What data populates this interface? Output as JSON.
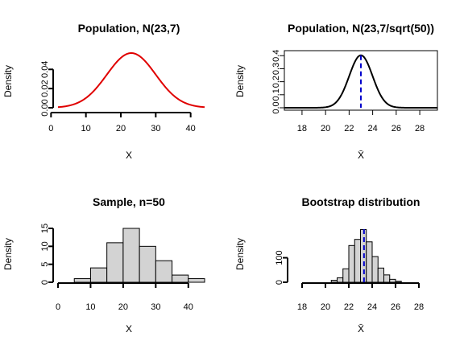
{
  "chart_data": [
    {
      "type": "line",
      "title": "Population, N(23,7)",
      "xlabel": "X",
      "ylabel": "Density",
      "xlim": [
        2,
        44
      ],
      "ylim": [
        0,
        0.057
      ],
      "xticks": [
        0,
        10,
        20,
        30,
        40
      ],
      "yticks": [
        0.0,
        0.02,
        0.04
      ],
      "ytick_labels": [
        "0.00",
        "0.02",
        "0.04"
      ],
      "line_color": "#e00000",
      "series": [
        {
          "mean": 23,
          "sd": 7,
          "x_from": 2,
          "x_to": 44
        }
      ]
    },
    {
      "type": "line",
      "title": "Population, N(23,7/sqrt(50))",
      "xlabel": "X̄",
      "ylabel": "Density",
      "xlim": [
        16.5,
        29.5
      ],
      "ylim": [
        0,
        0.42
      ],
      "xticks": [
        18,
        20,
        22,
        24,
        26,
        28
      ],
      "yticks": [
        0.0,
        0.1,
        0.2,
        0.3,
        0.4
      ],
      "ytick_labels": [
        "0.0",
        "0.1",
        "0.2",
        "0.3",
        "0.4"
      ],
      "line_color": "#000000",
      "vline": {
        "x": 23,
        "color": "#0000cc",
        "style": "dashed"
      },
      "series": [
        {
          "mean": 23,
          "sd": 0.99,
          "x_from": 16.5,
          "x_to": 29.5
        }
      ]
    },
    {
      "type": "bar",
      "title": "Sample, n=50",
      "xlabel": "X",
      "ylabel": "Density",
      "xlim": [
        0,
        45
      ],
      "ylim": [
        0,
        15
      ],
      "xticks": [
        0,
        10,
        20,
        30,
        40
      ],
      "yticks": [
        0,
        5,
        10,
        15
      ],
      "ytick_labels": [
        "0",
        "5",
        "10",
        "15"
      ],
      "bar_color": "#d3d3d3",
      "bins": [
        [
          5,
          10
        ],
        [
          10,
          15
        ],
        [
          15,
          20
        ],
        [
          20,
          25
        ],
        [
          25,
          30
        ],
        [
          30,
          35
        ],
        [
          35,
          40
        ],
        [
          40,
          45
        ]
      ],
      "values": [
        1,
        4,
        11,
        15,
        10,
        6,
        2,
        1
      ]
    },
    {
      "type": "bar",
      "title": "Bootstrap distribution",
      "xlabel": "X̄",
      "ylabel": "Density",
      "xlim": [
        18,
        28
      ],
      "ylim": [
        0,
        220
      ],
      "xticks": [
        18,
        20,
        22,
        24,
        26,
        28
      ],
      "yticks": [
        0,
        100
      ],
      "ytick_labels": [
        "0",
        "100"
      ],
      "bar_color": "#d3d3d3",
      "vline": {
        "x": 23.3,
        "color": "#0000cc",
        "style": "dashed"
      },
      "bins": [
        [
          20.5,
          21
        ],
        [
          21,
          21.5
        ],
        [
          21.5,
          22
        ],
        [
          22,
          22.5
        ],
        [
          22.5,
          23
        ],
        [
          23,
          23.5
        ],
        [
          23.5,
          24
        ],
        [
          24,
          24.5
        ],
        [
          24.5,
          25
        ],
        [
          25,
          25.5
        ],
        [
          25.5,
          26
        ],
        [
          26,
          26.5
        ]
      ],
      "values": [
        8,
        18,
        55,
        150,
        175,
        215,
        165,
        105,
        58,
        30,
        12,
        4
      ]
    }
  ]
}
